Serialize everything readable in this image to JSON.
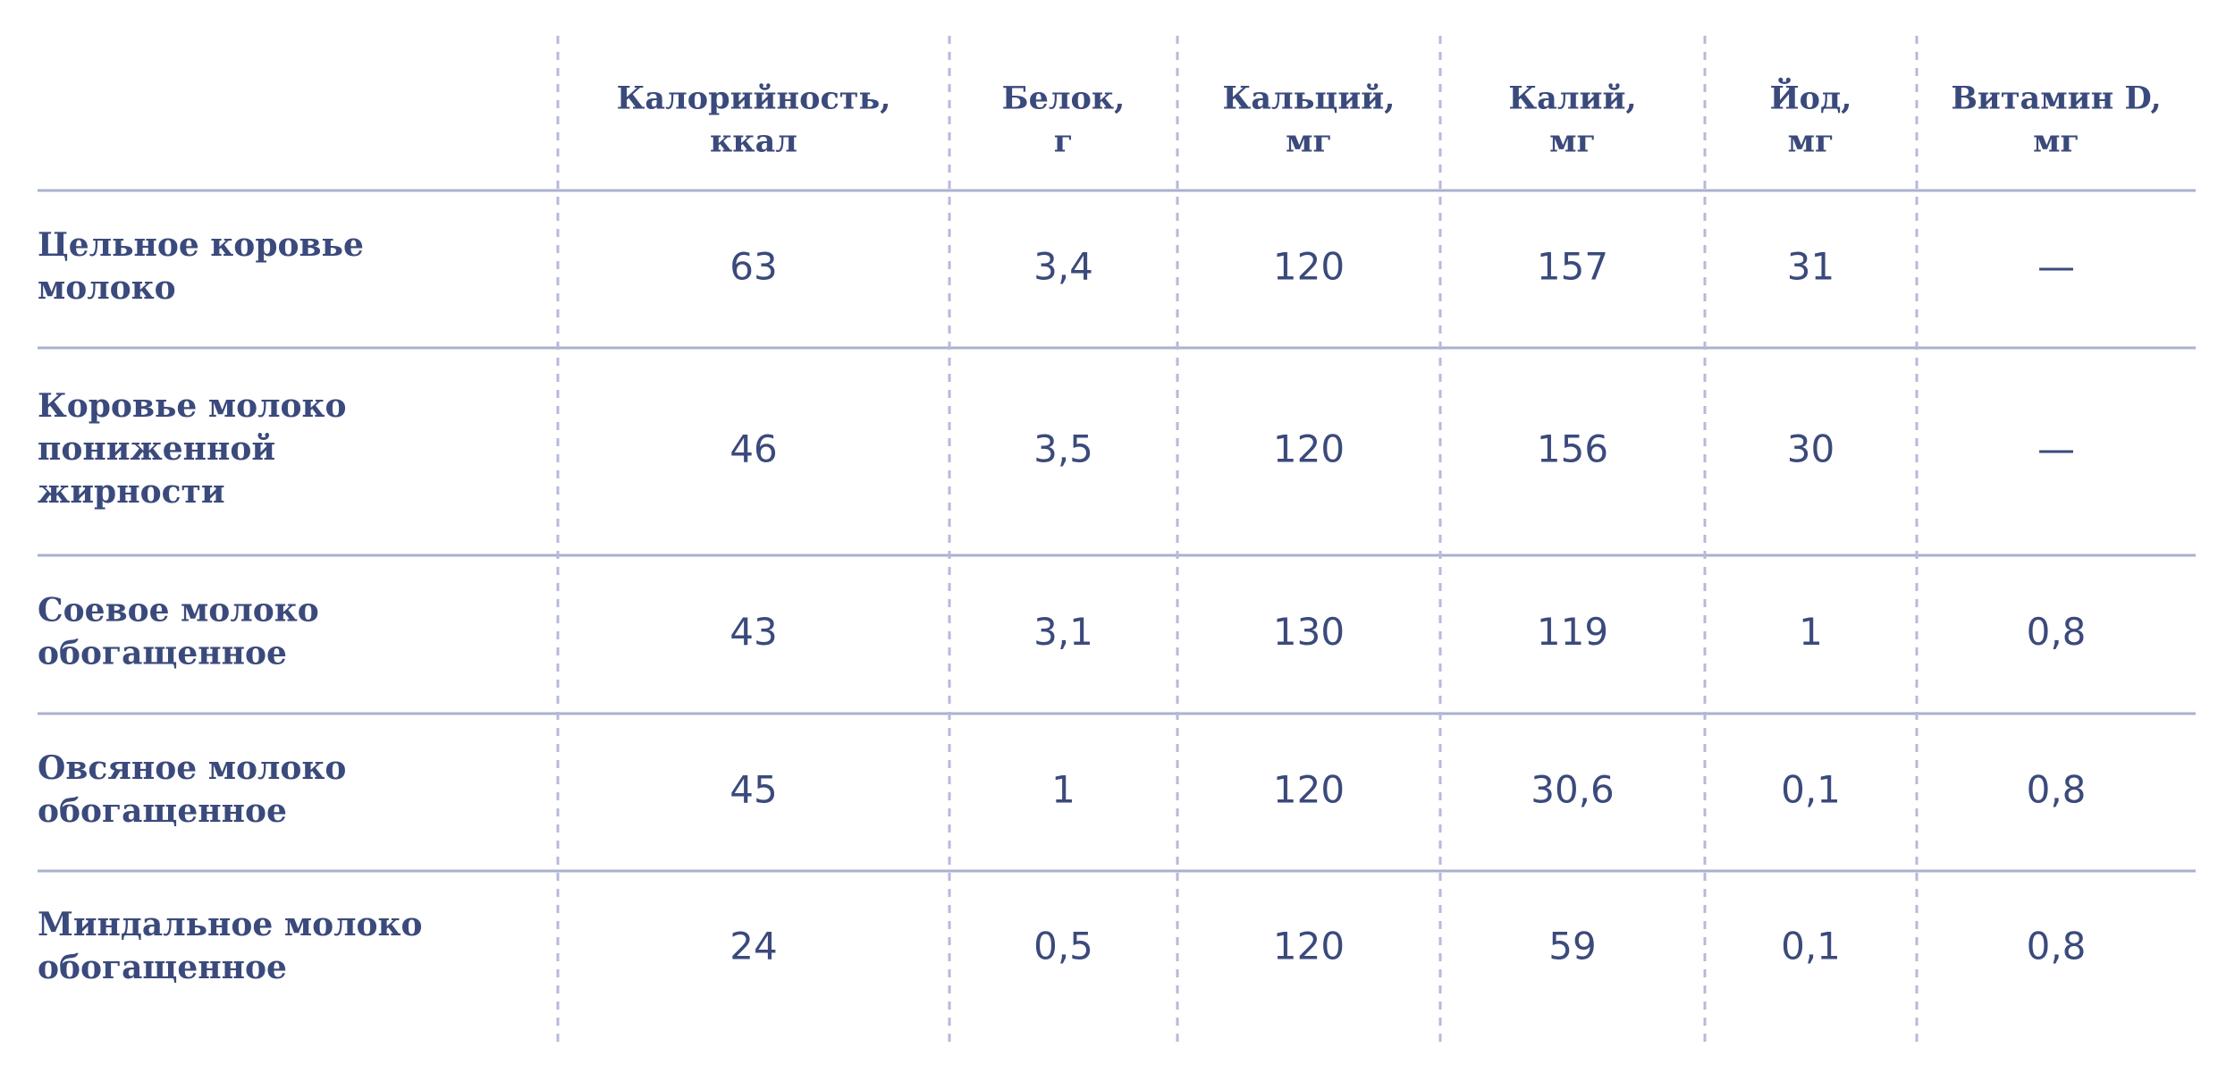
{
  "table": {
    "header": [
      [
        "Калорийность,",
        "ккал"
      ],
      [
        "Белок,",
        "г"
      ],
      [
        "Кальций,",
        "мг"
      ],
      [
        "Калий,",
        "мг"
      ],
      [
        "Йод,",
        "мг"
      ],
      [
        "Витамин D,",
        "мг"
      ]
    ],
    "rows": [
      {
        "name": [
          "Цельное коровье",
          "молоко"
        ],
        "values": [
          "63",
          "3,4",
          "120",
          "157",
          "31",
          "—"
        ]
      },
      {
        "name": [
          "Коровье молоко",
          "пониженной",
          "жирности"
        ],
        "values": [
          "46",
          "3,5",
          "120",
          "156",
          "30",
          "—"
        ]
      },
      {
        "name": [
          "Соевое молоко",
          "обогащенное"
        ],
        "values": [
          "43",
          "3,1",
          "130",
          "119",
          "1",
          "0,8"
        ]
      },
      {
        "name": [
          "Овсяное молоко",
          "обогащенное"
        ],
        "values": [
          "45",
          "1",
          "120",
          "30,6",
          "0,1",
          "0,8"
        ]
      },
      {
        "name": [
          "Миндальное молоко",
          "обогащенное"
        ],
        "values": [
          "24",
          "0,5",
          "120",
          "59",
          "0,1",
          "0,8"
        ]
      }
    ]
  }
}
